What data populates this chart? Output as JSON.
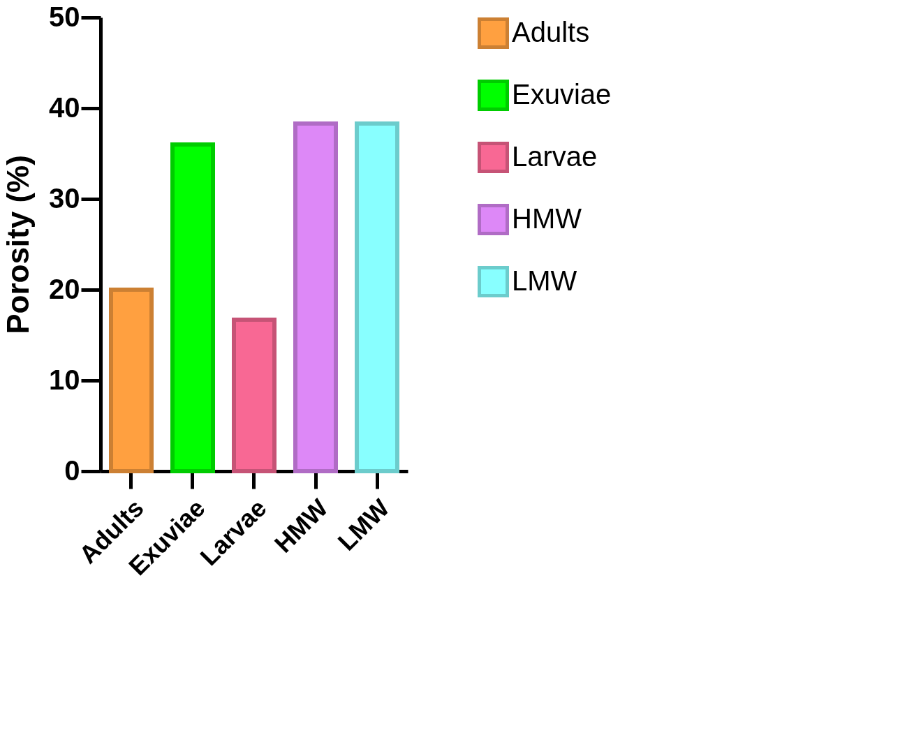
{
  "chart_data": {
    "type": "bar",
    "ylabel": "Porosity (%)",
    "categories": [
      "Adults",
      "Exuviae",
      "Larvae",
      "HMW",
      "LMW"
    ],
    "series": [
      {
        "name": "Adults",
        "color": "#ffa040",
        "values": [
          20,
          null,
          null,
          null,
          null
        ]
      },
      {
        "name": "Exuviae",
        "color": "#00ff00",
        "values": [
          null,
          36,
          null,
          null,
          null
        ]
      },
      {
        "name": "Larvae",
        "color": "#f86894",
        "values": [
          null,
          null,
          16.7,
          null,
          null
        ]
      },
      {
        "name": "HMW",
        "color": "#dd88f7",
        "values": [
          null,
          null,
          null,
          38.3,
          null
        ]
      },
      {
        "name": "LMW",
        "color": "#88ffff",
        "values": [
          null,
          null,
          null,
          null,
          38.3
        ]
      }
    ],
    "ylim": [
      0,
      50
    ],
    "yticks": [
      0,
      10,
      20,
      30,
      40,
      50
    ],
    "grid": false,
    "legend": "right"
  }
}
